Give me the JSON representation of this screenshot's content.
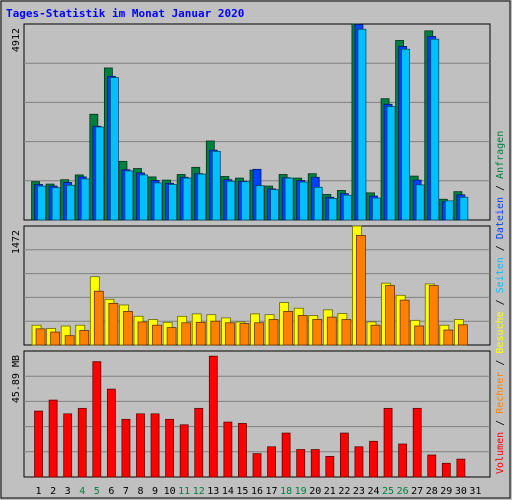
{
  "chart_data": {
    "type": "bar",
    "title": "Tages-Statistik im Monat Januar 2020",
    "days": [
      1,
      2,
      3,
      4,
      5,
      6,
      7,
      8,
      9,
      10,
      11,
      12,
      13,
      14,
      15,
      16,
      17,
      18,
      19,
      20,
      21,
      22,
      23,
      24,
      25,
      26,
      27,
      28,
      29,
      30,
      31
    ],
    "weekend_days": [
      4,
      5,
      11,
      12,
      18,
      19,
      25,
      26
    ],
    "colors": {
      "title": "#0000ff",
      "weekend_day": "#008040",
      "anfragen": "#008040",
      "dateien": "#0040ff",
      "seiten": "#00c0ff",
      "besuche": "#ffff00",
      "rechner": "#ff8000",
      "volumen": "#ff0000"
    },
    "legend_right": [
      {
        "text": "Volumen",
        "color_key": "volumen"
      },
      {
        "text": "Rechner",
        "color_key": "rechner"
      },
      {
        "text": "Besuche",
        "color_key": "besuche"
      },
      {
        "text": "Seiten",
        "color_key": "seiten"
      },
      {
        "text": "Dateien",
        "color_key": "dateien"
      },
      {
        "text": "Anfragen",
        "color_key": "anfragen"
      }
    ],
    "panels": [
      {
        "id": "hits",
        "max_label": "4912",
        "ymax": 4912,
        "series": [
          {
            "name": "Anfragen",
            "color_key": "anfragen",
            "values": [
              960,
              900,
              1010,
              1130,
              2650,
              3810,
              1470,
              1290,
              1080,
              1000,
              1140,
              1320,
              1980,
              1090,
              1050,
              1250,
              850,
              1140,
              1050,
              1160,
              640,
              740,
              5010,
              680,
              3040,
              4500,
              1100,
              4740,
              520,
              710,
              null
            ]
          },
          {
            "name": "Dateien",
            "color_key": "dateien",
            "values": [
              890,
              850,
              940,
              1080,
              2350,
              3600,
              1260,
              1180,
              990,
              920,
              1070,
              1160,
              1750,
              1010,
              970,
              1270,
              780,
              1060,
              990,
              1070,
              570,
              660,
              4900,
              600,
              2900,
              4350,
              1000,
              4600,
              460,
              630,
              null
            ]
          },
          {
            "name": "Seiten",
            "color_key": "seiten",
            "values": [
              850,
              810,
              870,
              1030,
              2330,
              3570,
              1230,
              1130,
              930,
              890,
              1050,
              1150,
              1720,
              970,
              960,
              860,
              760,
              1050,
              950,
              820,
              540,
              620,
              4780,
              550,
              2840,
              4280,
              880,
              4530,
              480,
              570,
              null
            ]
          }
        ]
      },
      {
        "id": "visits",
        "max_label": "1472",
        "ymax": 1472,
        "series": [
          {
            "name": "Besuche",
            "color_key": "besuche",
            "values": [
              245,
              205,
              235,
              245,
              845,
              565,
              495,
              355,
              315,
              280,
              355,
              385,
              375,
              335,
              285,
              385,
              375,
              525,
              455,
              365,
              435,
              390,
              1510,
              285,
              765,
              615,
              305,
              755,
              245,
              315,
              null
            ]
          },
          {
            "name": "Rechner",
            "color_key": "rechner",
            "values": [
              200,
              160,
              115,
              180,
              665,
              515,
              415,
              285,
              245,
              215,
              275,
              280,
              295,
              275,
              265,
              275,
              315,
              415,
              365,
              315,
              345,
              315,
              1355,
              245,
              735,
              555,
              235,
              735,
              185,
              250,
              null
            ]
          }
        ]
      },
      {
        "id": "volume",
        "max_label": "45.89 MB",
        "ymax": 45.89,
        "series": [
          {
            "name": "Volumen",
            "color_key": "volumen",
            "values": [
              24,
              28,
              23,
              25,
              42,
              32,
              21,
              23,
              23,
              21,
              19,
              25,
              44,
              20,
              19.5,
              8.5,
              11,
              16,
              10,
              10,
              7.5,
              16,
              11,
              13,
              25,
              12,
              25,
              8,
              5,
              6.5,
              null
            ]
          }
        ]
      }
    ]
  }
}
